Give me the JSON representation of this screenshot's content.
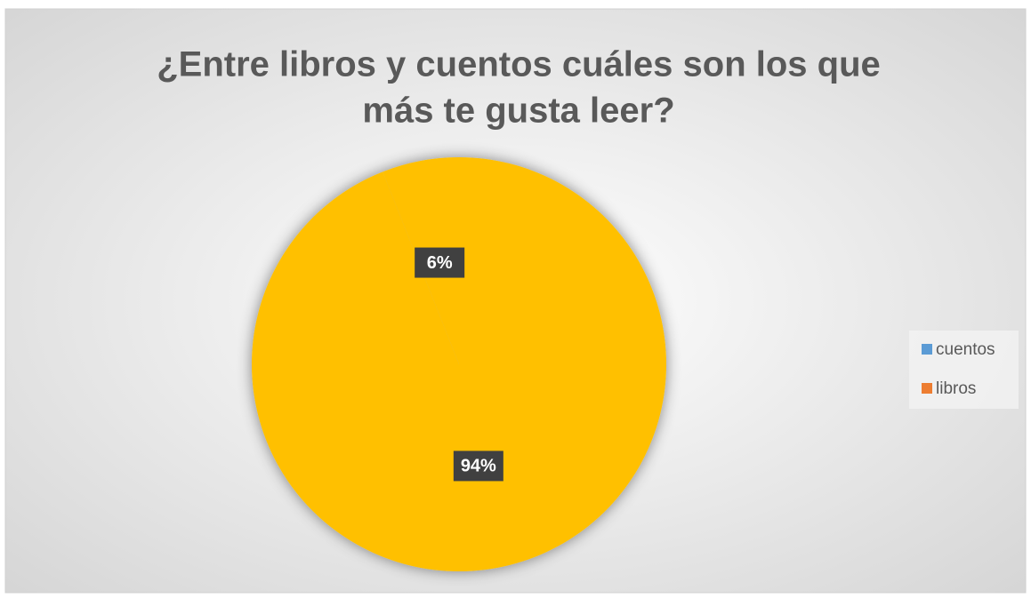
{
  "chart_data": {
    "type": "pie",
    "title": [
      "¿Entre libros y cuentos cuáles son los que",
      "más te gusta leer?"
    ],
    "categories": [
      "cuentos",
      "libros"
    ],
    "values": [
      6,
      94
    ],
    "value_labels": [
      "6%",
      "94%"
    ],
    "slice_color": "#FFC000",
    "legend_colors": [
      "#5B9BD5",
      "#ED7D31"
    ],
    "legend": "right"
  }
}
